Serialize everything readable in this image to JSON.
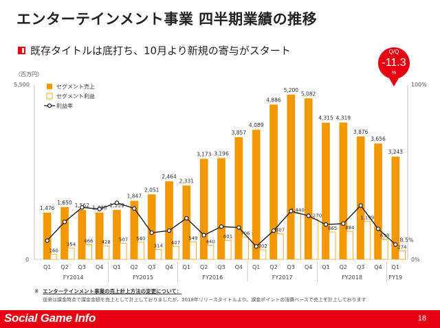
{
  "title": "エンターテインメント事業 四半期業績の推移",
  "subtitle": "既存タイトルは底打ち、10月より新規の寄与がスタート",
  "badge": {
    "top": "Q/Q",
    "value": "-11.3",
    "unit": "%"
  },
  "notes": {
    "mark": "※",
    "heading": "エンターテインメント事業の売上計上方法の変更について：",
    "body": "従来は課金時点で課金金額を売上として計上しておりましたが、2018年リリースタイトルより、課金ポイントの消費ベースで売上を計上しております"
  },
  "footer": {
    "logo": "Social Game Info",
    "page": "18"
  },
  "colors": {
    "accent": "#e60012",
    "bar": "#f39800",
    "profit_bar_edge": "#f5a623",
    "line": "#1a1a1a"
  },
  "chart_data": {
    "type": "bar",
    "unit_label": "（百万円）",
    "ylim": [
      0,
      5500
    ],
    "y_ticks": [
      "5,500",
      "0"
    ],
    "y2lim": [
      0,
      100
    ],
    "y2_ticks": [
      "100%",
      "0%"
    ],
    "quarters": [
      "Q1",
      "Q2",
      "Q3",
      "Q4",
      "Q1",
      "Q2",
      "Q3",
      "Q4",
      "Q1",
      "Q2",
      "Q3",
      "Q4",
      "Q1",
      "Q2",
      "Q3",
      "Q4",
      "Q1",
      "Q2",
      "Q3",
      "Q4",
      "Q1"
    ],
    "fiscal_years": [
      {
        "label": "FY2014",
        "start": 0,
        "end": 3
      },
      {
        "label": "FY2015",
        "start": 4,
        "end": 7
      },
      {
        "label": "FY2016",
        "start": 8,
        "end": 11
      },
      {
        "label": "FY2017",
        "start": 12,
        "end": 15
      },
      {
        "label": "FY2018",
        "start": 16,
        "end": 19
      },
      {
        "label": "FY19",
        "start": 20,
        "end": 20
      }
    ],
    "legend": [
      "セグメント売上",
      "セグメント利益",
      "利益率"
    ],
    "series": [
      {
        "name": "セグメント売上",
        "values": [
          1476,
          1650,
          1562,
          1480,
          1559,
          1847,
          2051,
          2464,
          2331,
          3173,
          3196,
          3857,
          4089,
          4886,
          5200,
          5082,
          4315,
          4319,
          3876,
          3656,
          3243
        ],
        "labels": [
          "1,476",
          "1,650",
          "1,562",
          "1,480",
          "1,559",
          "1,847",
          "2,051",
          "2,464",
          "2,331",
          "3,173",
          "3,196",
          "3,857",
          "4,089",
          "4,886",
          "5,200",
          "5,082",
          "4,315",
          "4,319",
          "3,876",
          "3,656",
          "3,243"
        ]
      },
      {
        "name": "セグメント利益",
        "values": [
          160,
          354,
          466,
          428,
          507,
          540,
          314,
          407,
          549,
          440,
          601,
          706,
          302,
          807,
          1440,
          1270,
          865,
          884,
          1199,
          638,
          274
        ],
        "labels": [
          "160",
          "354",
          "466",
          "428",
          "507",
          "540",
          "314",
          "407",
          "549",
          "440",
          "601",
          "706",
          "302",
          "807",
          "1,440",
          "1,270",
          "865",
          "884",
          "1,199",
          "638",
          "274"
        ]
      },
      {
        "name": "利益率",
        "values": [
          10.8,
          21.5,
          29.8,
          28.9,
          32.5,
          29.2,
          15.3,
          16.5,
          23.6,
          13.9,
          18.8,
          18.3,
          7.4,
          16.5,
          27.7,
          25.0,
          20.0,
          20.5,
          30.9,
          17.5,
          8.5
        ],
        "point_labels": {
          "20": "8.5%"
        }
      }
    ]
  }
}
